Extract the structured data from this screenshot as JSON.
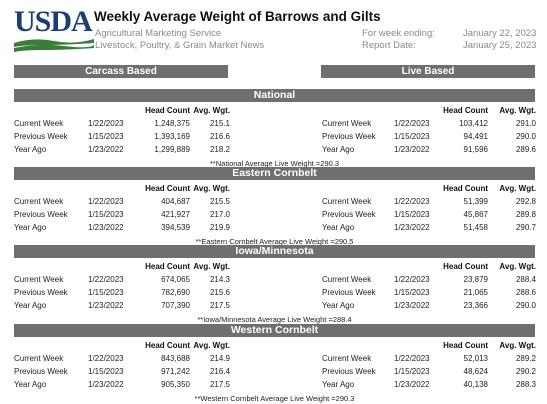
{
  "header": {
    "logo_text": "USDA",
    "title": "Weekly Average Weight of Barrows and Gilts",
    "agency": "Agricultural Marketing Service",
    "division": "Livestock, Poultry, & Grain Market News",
    "week_ending_label": "For week ending:",
    "week_ending_value": "January 22, 2023",
    "report_date_label": "Report Date:",
    "report_date_value": "January 25, 2023"
  },
  "colors": {
    "usda_blue": "#1b3f73",
    "usda_green": "#3a7d3a",
    "bar_gray": "#6f6f6f"
  },
  "columns": {
    "carcass_label": "Carcass Based",
    "live_label": "Live Based",
    "head_count": "Head Count",
    "avg_wgt": "Avg. Wgt."
  },
  "sections": [
    {
      "name": "National",
      "carcass": [
        {
          "label": "Current Week",
          "date": "1/22/2023",
          "head": "1,248,375",
          "wgt": "215.1"
        },
        {
          "label": "Previous Week",
          "date": "1/15/2023",
          "head": "1,393,169",
          "wgt": "216.6"
        },
        {
          "label": "Year Ago",
          "date": "1/23/2022",
          "head": "1,299,889",
          "wgt": "218.2"
        }
      ],
      "live": [
        {
          "label": "Current Week",
          "date": "1/22/2023",
          "head": "103,412",
          "wgt": "291.0"
        },
        {
          "label": "Previous Week",
          "date": "1/15/2023",
          "head": "94,491",
          "wgt": "290.0"
        },
        {
          "label": "Year Ago",
          "date": "1/23/2022",
          "head": "91,596",
          "wgt": "289.6"
        }
      ],
      "note": "**National Average Live Weight =290.3"
    },
    {
      "name": "Eastern Cornbelt",
      "carcass": [
        {
          "label": "Current Week",
          "date": "1/22/2023",
          "head": "404,687",
          "wgt": "215.5"
        },
        {
          "label": "Previous Week",
          "date": "1/15/2023",
          "head": "421,927",
          "wgt": "217.0"
        },
        {
          "label": "Year Ago",
          "date": "1/23/2022",
          "head": "394,539",
          "wgt": "219.9"
        }
      ],
      "live": [
        {
          "label": "Current Week",
          "date": "1/22/2023",
          "head": "51,399",
          "wgt": "292.8"
        },
        {
          "label": "Previous Week",
          "date": "1/15/2023",
          "head": "45,867",
          "wgt": "289.8"
        },
        {
          "label": "Year Ago",
          "date": "1/23/2022",
          "head": "51,458",
          "wgt": "290.7"
        }
      ],
      "note": "**Eastern Cornbelt Average Live Weight =290.5"
    },
    {
      "name": "Iowa/Minnesota",
      "carcass": [
        {
          "label": "Current Week",
          "date": "1/22/2023",
          "head": "674,065",
          "wgt": "214.3"
        },
        {
          "label": "Previous Week",
          "date": "1/15/2023",
          "head": "782,690",
          "wgt": "215.6"
        },
        {
          "label": "Year Ago",
          "date": "1/23/2022",
          "head": "707,390",
          "wgt": "217.5"
        }
      ],
      "live": [
        {
          "label": "Current Week",
          "date": "1/22/2023",
          "head": "23,879",
          "wgt": "288.4"
        },
        {
          "label": "Previous Week",
          "date": "1/15/2023",
          "head": "21,065",
          "wgt": "288.6"
        },
        {
          "label": "Year Ago",
          "date": "1/23/2022",
          "head": "23,366",
          "wgt": "290.0"
        }
      ],
      "note": "**Iowa/Minnesota Average Live Weight =288.4"
    },
    {
      "name": "Western Cornbelt",
      "carcass": [
        {
          "label": "Current Week",
          "date": "1/22/2023",
          "head": "843,688",
          "wgt": "214.9"
        },
        {
          "label": "Previous Week",
          "date": "1/15/2023",
          "head": "971,242",
          "wgt": "216.4"
        },
        {
          "label": "Year Ago",
          "date": "1/23/2022",
          "head": "905,350",
          "wgt": "217.5"
        }
      ],
      "live": [
        {
          "label": "Current Week",
          "date": "1/22/2023",
          "head": "52,013",
          "wgt": "289.2"
        },
        {
          "label": "Previous Week",
          "date": "1/15/2023",
          "head": "48,624",
          "wgt": "290.2"
        },
        {
          "label": "Year Ago",
          "date": "1/23/2022",
          "head": "40,138",
          "wgt": "288.3"
        }
      ],
      "note": "**Western Cornbelt Average Live Weight =290.3"
    }
  ]
}
